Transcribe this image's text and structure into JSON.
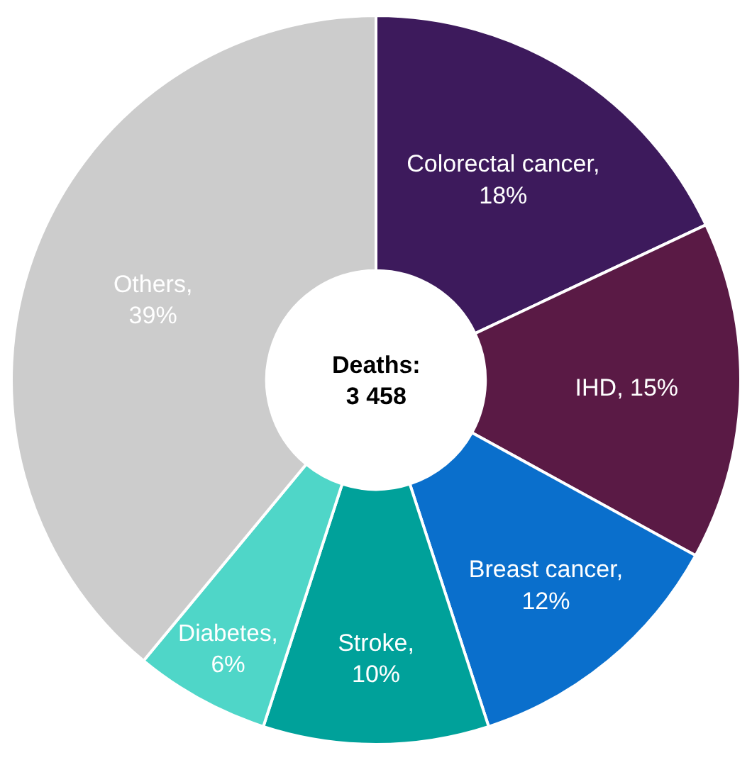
{
  "chart_data": {
    "type": "donut",
    "categories": [
      "Colorectal cancer, 18%",
      "IHD, 15%",
      "Breast cancer, 12%",
      "Stroke, 10%",
      "Diabetes, 6%",
      "Others, 39%"
    ],
    "values": [
      18,
      15,
      12,
      10,
      6,
      39
    ],
    "colors": [
      "#3d1a5c",
      "#5a1a45",
      "#0a6fcc",
      "#00a19a",
      "#4fd6c8",
      "#cccccc"
    ],
    "annotations": [
      "Deaths:\n3 458"
    ],
    "legend": false
  }
}
